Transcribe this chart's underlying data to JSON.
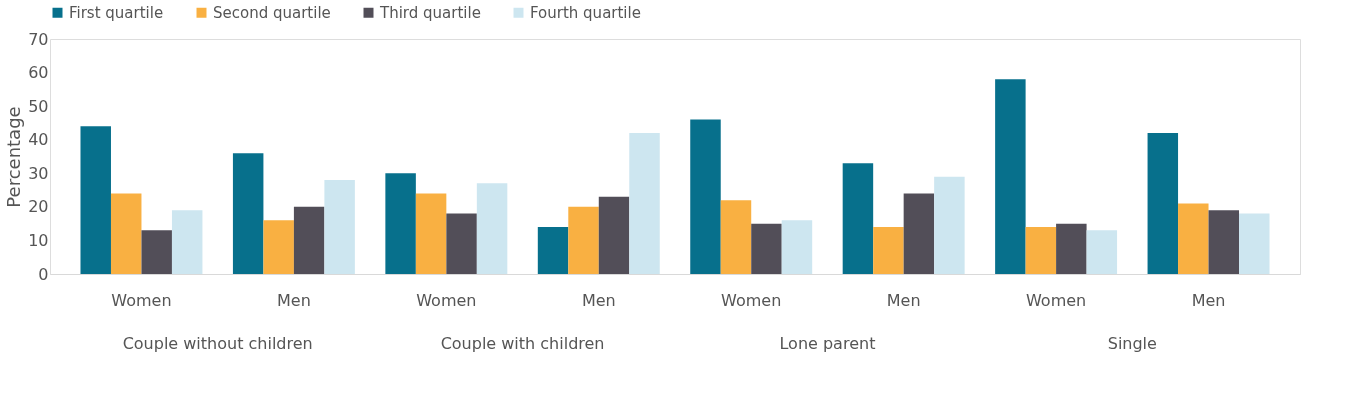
{
  "chart_data": {
    "type": "bar",
    "ylabel": "Percentage",
    "categories": [
      "Women",
      "Men",
      "Women",
      "Men",
      "Women",
      "Men",
      "Women",
      "Men"
    ],
    "annotations": [
      "Couple without children",
      "Couple with children",
      "Lone parent",
      "Single"
    ],
    "series": [
      {
        "name": "First quartile",
        "color": "#07708c",
        "values": [
          44,
          36,
          30,
          14,
          46,
          33,
          58,
          42
        ]
      },
      {
        "name": "Second quartile",
        "color": "#f9b042",
        "values": [
          24,
          16,
          24,
          20,
          22,
          14,
          14,
          21
        ]
      },
      {
        "name": "Third quartile",
        "color": "#524e58",
        "values": [
          13,
          20,
          18,
          23,
          15,
          24,
          15,
          19
        ]
      },
      {
        "name": "Fourth quartile",
        "color": "#cde6f0",
        "values": [
          19,
          28,
          27,
          42,
          16,
          29,
          13,
          18
        ]
      }
    ],
    "ylim": [
      0,
      70
    ],
    "yticks": [
      0,
      10,
      20,
      30,
      40,
      50,
      60,
      70
    ],
    "grid": false,
    "legend": "top"
  }
}
